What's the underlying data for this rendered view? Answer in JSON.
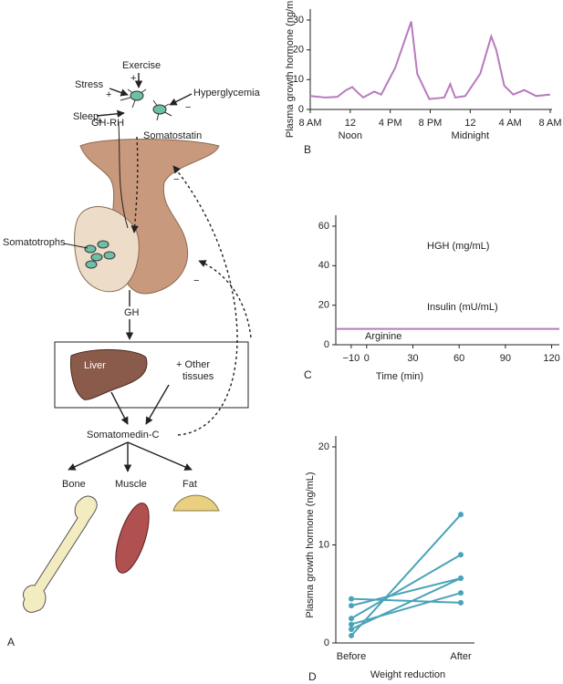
{
  "diagram": {
    "panel_label": "A",
    "inputs": [
      "Exercise",
      "Stress",
      "Sleep",
      "Hyperglycemia"
    ],
    "labels": {
      "ghrh": "GH-RH",
      "somatostatin": "Somatostatin",
      "somatotrophs": "Somatotrophs",
      "gh": "GH",
      "liver": "Liver",
      "other": "+ Other",
      "tissues": "tissues",
      "somatomedin": "Somatomedin-C"
    },
    "targets": [
      "Bone",
      "Muscle",
      "Fat"
    ],
    "signs": [
      "+",
      "+",
      "+",
      "−",
      "−",
      "−"
    ]
  },
  "chart_data": [
    {
      "type": "line",
      "panel_label": "B",
      "ylabel": "Plasma growth hormone (ng/mL)",
      "x": [
        0,
        1.5,
        2.7,
        3.6,
        4.2,
        4.8,
        5.3,
        6.4,
        7.1,
        8.5,
        10.1,
        10.7,
        11.9,
        13.4,
        14,
        14.5,
        15.5,
        17,
        18.1,
        18.6,
        19.4,
        20.3,
        21.4,
        22.6,
        24
      ],
      "series": [
        {
          "color": "#b77bbd",
          "values": [
            4.5,
            4,
            4.2,
            6.5,
            7.5,
            5.5,
            4,
            6,
            5,
            14,
            29.5,
            12,
            3.5,
            4,
            8.5,
            4,
            4.5,
            12,
            24.5,
            20,
            8,
            5,
            6.5,
            4.5,
            5
          ]
        }
      ],
      "xlim": [
        0,
        24
      ],
      "ylim": [
        0,
        30
      ],
      "xticks": [
        {
          "value": 0,
          "label": "8 AM"
        },
        4,
        8,
        12,
        16,
        20,
        24
      ],
      "xtick_labels": [
        "8 AM",
        "12",
        "4 PM",
        "8 PM",
        "12",
        "4 AM",
        "8 AM"
      ],
      "annotations": [
        "Noon",
        "Midnight"
      ],
      "yticks": [
        0,
        10,
        20,
        30
      ]
    },
    {
      "type": "line",
      "panel_label": "C",
      "xlabel": "Time (min)",
      "x": [
        -20,
        125
      ],
      "series": [
        {
          "color": "#b77bbd",
          "values": [
            8,
            8
          ]
        }
      ],
      "xlim": [
        -20,
        125
      ],
      "ylim": [
        0,
        60
      ],
      "xticks": [
        {
          "value": -10,
          "label": "−10"
        },
        0,
        30,
        60,
        90,
        120
      ],
      "yticks": [
        0,
        20,
        40,
        60
      ],
      "annotations": [
        "HGH (mg/mL)",
        "Insulin (mU/mL)",
        "Arginine"
      ]
    },
    {
      "type": "line",
      "panel_label": "D",
      "xlabel": "Weight reduction",
      "ylabel": "Plasma growth hormone (ng/mL)",
      "categories": [
        "Before",
        "After"
      ],
      "series": [
        {
          "color": "#4aa3b8",
          "values": [
            4.5,
            4.1
          ]
        },
        {
          "color": "#4aa3b8",
          "values": [
            3.8,
            6.6
          ]
        },
        {
          "color": "#4aa3b8",
          "values": [
            2.5,
            9.0
          ]
        },
        {
          "color": "#4aa3b8",
          "values": [
            1.9,
            5.1
          ]
        },
        {
          "color": "#4aa3b8",
          "values": [
            1.4,
            6.6
          ]
        },
        {
          "color": "#4aa3b8",
          "values": [
            0.75,
            13.1
          ]
        }
      ],
      "ylim": [
        0,
        20
      ],
      "yticks": [
        0,
        10,
        20
      ]
    }
  ]
}
